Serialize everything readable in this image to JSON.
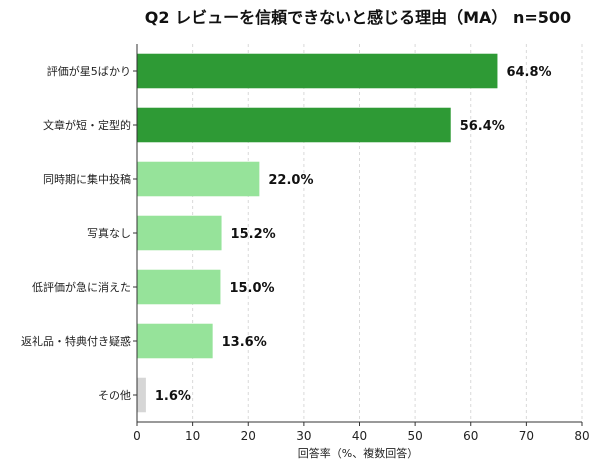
{
  "chart_data": {
    "type": "bar",
    "orientation": "horizontal",
    "title": "Q2 レビューを信頼できないと感じる理由（MA） n=500",
    "xlabel": "回答率（%、複数回答）",
    "ylabel": "",
    "xlim": [
      0,
      80
    ],
    "xticks": [
      0,
      10,
      20,
      30,
      40,
      50,
      60,
      70,
      80
    ],
    "grid": "vertical dashed",
    "categories": [
      "評価が星5ばかり",
      "文章が短・定型的",
      "同時期に集中投稿",
      "写真なし",
      "低評価が急に消えた",
      "返礼品・特典付き疑惑",
      "その他"
    ],
    "values": [
      64.8,
      56.4,
      22.0,
      15.2,
      15.0,
      13.6,
      1.6
    ],
    "value_labels": [
      "64.8%",
      "56.4%",
      "22.0%",
      "15.2%",
      "15.0%",
      "13.6%",
      "1.6%"
    ],
    "colors": [
      "#2e9a35",
      "#2e9a35",
      "#96e39a",
      "#96e39a",
      "#96e39a",
      "#96e39a",
      "#d6d6d6"
    ]
  }
}
